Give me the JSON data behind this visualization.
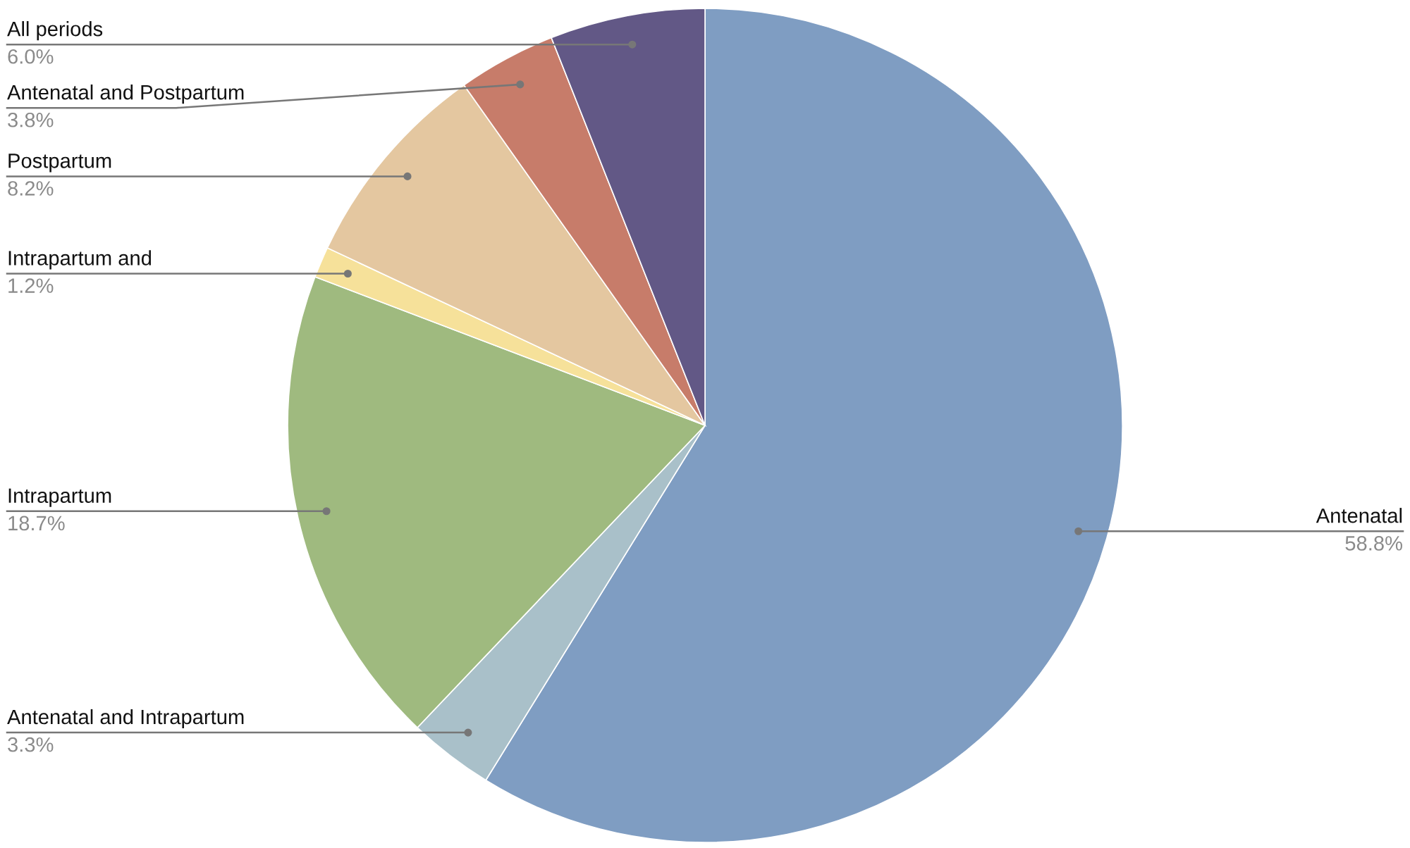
{
  "chart_data": {
    "type": "pie",
    "categories": [
      "Antenatal",
      "Antenatal and Intrapartum",
      "Intrapartum",
      "Intrapartum and",
      "Postpartum",
      "Antenatal and Postpartum",
      "All periods"
    ],
    "values": [
      58.8,
      3.3,
      18.7,
      1.2,
      8.2,
      3.8,
      6.0
    ],
    "colors": [
      "#7f9dc2",
      "#a9c0c9",
      "#9fba7f",
      "#f6e19a",
      "#e4c7a0",
      "#c77c6a",
      "#625886"
    ],
    "value_labels": [
      "58.8%",
      "3.3%",
      "18.7%",
      "1.2%",
      "8.2%",
      "3.8%",
      "6.0%"
    ]
  }
}
